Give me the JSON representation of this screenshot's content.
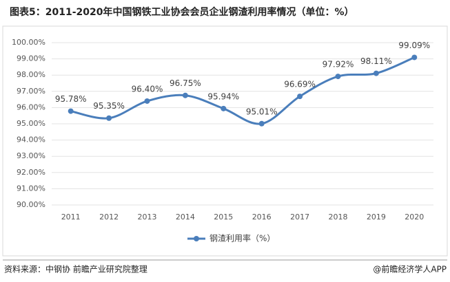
{
  "chart_data": {
    "type": "line",
    "title": "图表5：2011-2020年中国钢铁工业协会会员企业钢渣利用率情况（单位：%）",
    "categories": [
      "2011",
      "2012",
      "2013",
      "2014",
      "2015",
      "2016",
      "2017",
      "2018",
      "2019",
      "2020"
    ],
    "series": [
      {
        "name": "钢渣利用率（%）",
        "color": "#4a7ebb",
        "values": [
          95.78,
          95.35,
          96.4,
          96.75,
          95.94,
          95.01,
          96.69,
          97.92,
          98.11,
          99.09
        ],
        "value_labels": [
          "95.78%",
          "95.35%",
          "96.40%",
          "96.75%",
          "95.94%",
          "95.01%",
          "96.69%",
          "97.92%",
          "98.11%",
          "99.09%"
        ]
      }
    ],
    "ylim": [
      90,
      100
    ],
    "yticks": [
      {
        "value": 90,
        "label": "90.00%"
      },
      {
        "value": 91,
        "label": "91.00%"
      },
      {
        "value": 92,
        "label": "92.00%"
      },
      {
        "value": 93,
        "label": "93.00%"
      },
      {
        "value": 94,
        "label": "94.00%"
      },
      {
        "value": 95,
        "label": "95.00%"
      },
      {
        "value": 96,
        "label": "96.00%"
      },
      {
        "value": 97,
        "label": "97.00%"
      },
      {
        "value": 98,
        "label": "98.00%"
      },
      {
        "value": 99,
        "label": "99.00%"
      },
      {
        "value": 100,
        "label": "100.00%"
      }
    ],
    "grid": true,
    "smooth": true,
    "legend": "bottom",
    "source": "资料来源：中钢协 前瞻产业研究院整理",
    "credit": "@前瞻经济学人APP"
  }
}
